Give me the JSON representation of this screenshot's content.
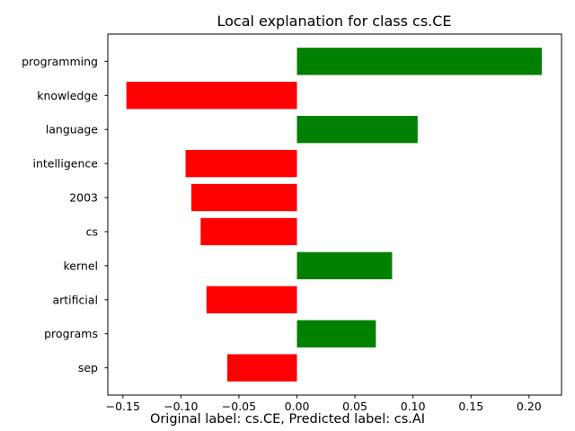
{
  "chart_data": {
    "type": "bar",
    "orientation": "horizontal",
    "title": "Local explanation for class cs.CE",
    "categories": [
      "programming",
      "knowledge",
      "language",
      "intelligence",
      "2003",
      "cs",
      "kernel",
      "artificial",
      "programs",
      "sep"
    ],
    "values": [
      0.211,
      -0.147,
      0.104,
      -0.096,
      -0.091,
      -0.083,
      0.082,
      -0.078,
      0.068,
      -0.06
    ],
    "xlim": [
      -0.163,
      0.228
    ],
    "xticks": [
      -0.15,
      -0.1,
      -0.05,
      0.0,
      0.05,
      0.1,
      0.15,
      0.2
    ],
    "xtick_labels": [
      "−0.15",
      "−0.10",
      "−0.05",
      "0.00",
      "0.05",
      "0.10",
      "0.15",
      "0.20"
    ],
    "xlabel": "",
    "ylabel": "",
    "grid": false,
    "colors": {
      "positive": "#008000",
      "negative": "#ff0000"
    }
  },
  "caption": "Original label: cs.CE, Predicted label: cs.AI"
}
